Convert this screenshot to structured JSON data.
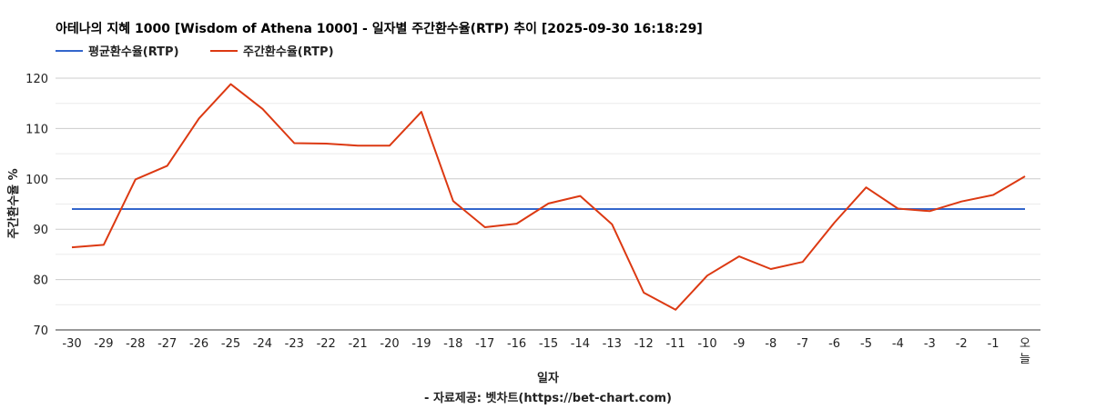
{
  "chart_data": {
    "type": "line",
    "title": "아테나의 지혜 1000 [Wisdom of Athena 1000] - 일자별 주간환수율(RTP) 추이 [2025-09-30 16:18:29]",
    "xlabel": "일자",
    "ylabel": "주간환수율 %",
    "source": "- 자료제공: 벳차트(https://bet-chart.com)",
    "legend_position": "top-left",
    "grid": true,
    "ylim": [
      70,
      120
    ],
    "yticks": [
      70,
      80,
      90,
      100,
      110,
      120
    ],
    "categories": [
      "-30",
      "-29",
      "-28",
      "-27",
      "-26",
      "-25",
      "-24",
      "-23",
      "-22",
      "-21",
      "-20",
      "-19",
      "-18",
      "-17",
      "-16",
      "-15",
      "-14",
      "-13",
      "-12",
      "-11",
      "-10",
      "-9",
      "-8",
      "-7",
      "-6",
      "-5",
      "-4",
      "-3",
      "-2",
      "-1",
      "오늘"
    ],
    "series": [
      {
        "name": "평균환수율(RTP)",
        "color": "#3366cc",
        "values": [
          94.0,
          94.0,
          94.0,
          94.0,
          94.0,
          94.0,
          94.0,
          94.0,
          94.0,
          94.0,
          94.0,
          94.0,
          94.0,
          94.0,
          94.0,
          94.0,
          94.0,
          94.0,
          94.0,
          94.0,
          94.0,
          94.0,
          94.0,
          94.0,
          94.0,
          94.0,
          94.0,
          94.0,
          94.0,
          94.0,
          94.0
        ]
      },
      {
        "name": "주간환수율(RTP)",
        "color": "#dc3912",
        "values": [
          86.4,
          86.9,
          99.9,
          102.6,
          112.0,
          118.8,
          113.9,
          107.1,
          107.0,
          106.6,
          106.6,
          113.3,
          95.6,
          90.4,
          91.1,
          95.1,
          96.6,
          91.0,
          77.4,
          74.0,
          80.8,
          84.6,
          82.1,
          83.5,
          91.3,
          98.3,
          94.1,
          93.6,
          95.5,
          96.8,
          100.5
        ]
      }
    ]
  }
}
